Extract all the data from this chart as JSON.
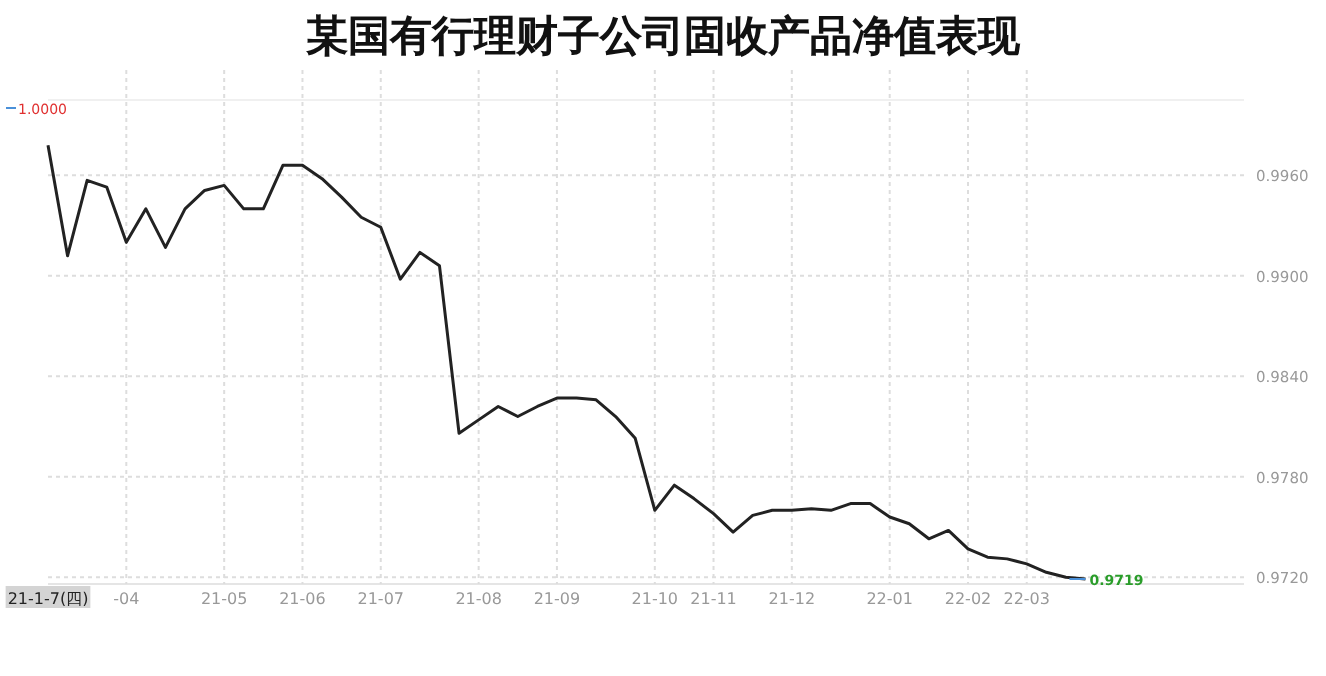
{
  "chart_data": {
    "type": "line",
    "title": "某国有行理财子公司固收产品净值表现",
    "categories": [
      "21-1-7(四)",
      null,
      null,
      null,
      "-04",
      null,
      null,
      null,
      null,
      "21-05",
      null,
      null,
      null,
      "21-06",
      null,
      null,
      null,
      "21-07",
      null,
      null,
      null,
      null,
      "21-08",
      null,
      null,
      null,
      "21-09",
      null,
      null,
      null,
      null,
      "21-10",
      null,
      null,
      "21-11",
      null,
      null,
      null,
      "21-12",
      null,
      null,
      null,
      null,
      "22-01",
      null,
      null,
      null,
      "22-02",
      null,
      null,
      "22-03",
      null,
      null,
      null
    ],
    "series": [
      {
        "color": "#222222",
        "values": [
          0.9978,
          0.9912,
          0.9957,
          0.9953,
          0.992,
          0.994,
          0.9917,
          0.994,
          0.9951,
          0.9954,
          0.994,
          0.994,
          0.9966,
          0.9966,
          0.9958,
          0.9947,
          0.9935,
          0.9929,
          0.9898,
          0.9914,
          0.9906,
          0.9806,
          0.9814,
          0.9822,
          0.9816,
          0.9822,
          0.9827,
          0.9827,
          0.9826,
          0.9816,
          0.9803,
          0.976,
          0.9775,
          0.9767,
          0.9758,
          0.9747,
          0.9757,
          0.976,
          0.976,
          0.9761,
          0.976,
          0.9764,
          0.9764,
          0.9756,
          0.9752,
          0.9743,
          0.9748,
          0.9737,
          0.9732,
          0.9731,
          0.9728,
          0.9723,
          0.972,
          0.9719
        ],
        "value_labels": [
          null,
          null,
          null,
          null,
          null,
          null,
          null,
          null,
          null,
          null,
          null,
          null,
          null,
          null,
          null,
          null,
          null,
          null,
          null,
          null,
          null,
          null,
          null,
          null,
          null,
          null,
          null,
          null,
          null,
          null,
          null,
          null,
          null,
          null,
          null,
          null,
          null,
          null,
          null,
          null,
          null,
          null,
          null,
          null,
          null,
          null,
          null,
          null,
          null,
          null,
          null,
          null,
          null,
          "0.9719"
        ]
      }
    ],
    "ylim": [
      0.9716,
      1.0005
    ],
    "yticks": [
      {
        "value": 0.972,
        "label": "0.9720"
      },
      {
        "value": 0.978,
        "label": "0.9780"
      },
      {
        "value": 0.984,
        "label": "0.9840"
      },
      {
        "value": 0.99,
        "label": "0.9900"
      },
      {
        "value": 0.996,
        "label": "0.9960"
      }
    ],
    "grid": true,
    "marker": "none",
    "line_style": "solid",
    "annotations": [
      "1.0000"
    ]
  }
}
